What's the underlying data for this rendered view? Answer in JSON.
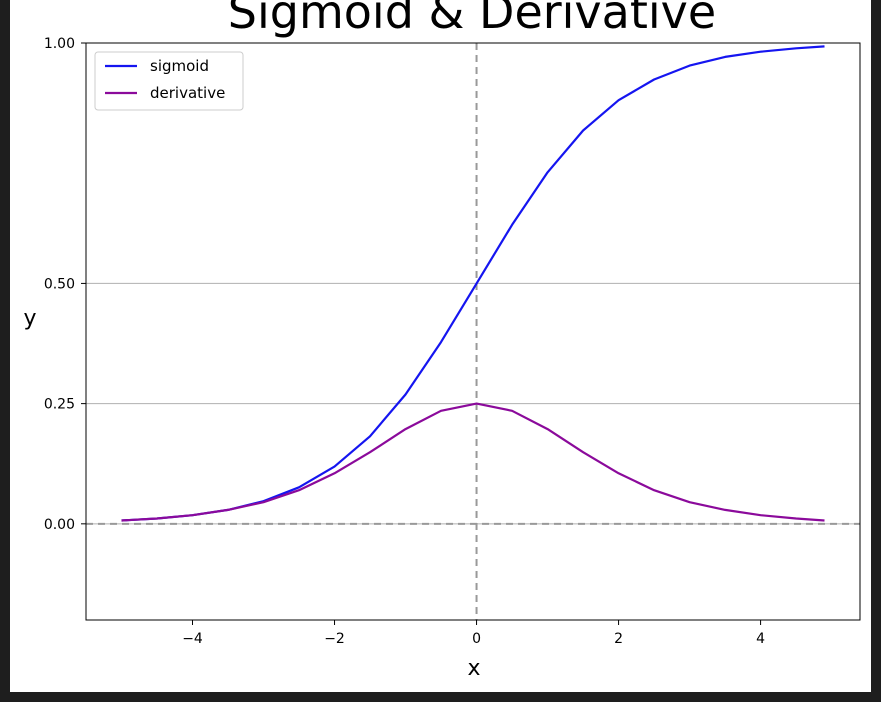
{
  "chart_data": {
    "type": "line",
    "title": "Sigmoid & Derivative",
    "xlabel": "x",
    "ylabel": "y",
    "xlim": [
      -5.5,
      5.4
    ],
    "ylim": [
      -0.2,
      1.0
    ],
    "xticks": [
      -4,
      -2,
      0,
      2,
      4
    ],
    "xtick_labels": [
      "−4",
      "−2",
      "0",
      "2",
      "4"
    ],
    "yticks": [
      0.0,
      0.25,
      0.5,
      1.0
    ],
    "ytick_labels": [
      "0.00",
      "0.25",
      "0.50",
      "1.00"
    ],
    "grid": "horizontal lines at y ticks",
    "reference_lines": {
      "x": 0,
      "y": 0,
      "style": "dashed gray"
    },
    "legend_position": "top-left",
    "x": [
      -5.0,
      -4.5,
      -4.0,
      -3.5,
      -3.0,
      -2.5,
      -2.0,
      -1.5,
      -1.0,
      -0.5,
      0.0,
      0.5,
      1.0,
      1.5,
      2.0,
      2.5,
      3.0,
      3.5,
      4.0,
      4.5,
      4.9
    ],
    "series": [
      {
        "name": "sigmoid",
        "color": "#1515f0",
        "values": [
          0.007,
          0.011,
          0.018,
          0.029,
          0.047,
          0.076,
          0.119,
          0.182,
          0.269,
          0.378,
          0.5,
          0.622,
          0.731,
          0.818,
          0.881,
          0.924,
          0.953,
          0.971,
          0.982,
          0.989,
          0.993
        ]
      },
      {
        "name": "derivative",
        "color": "#8b0a9b",
        "values": [
          0.007,
          0.011,
          0.018,
          0.029,
          0.045,
          0.07,
          0.105,
          0.149,
          0.197,
          0.235,
          0.25,
          0.235,
          0.197,
          0.149,
          0.105,
          0.07,
          0.045,
          0.029,
          0.018,
          0.011,
          0.007
        ]
      }
    ]
  }
}
